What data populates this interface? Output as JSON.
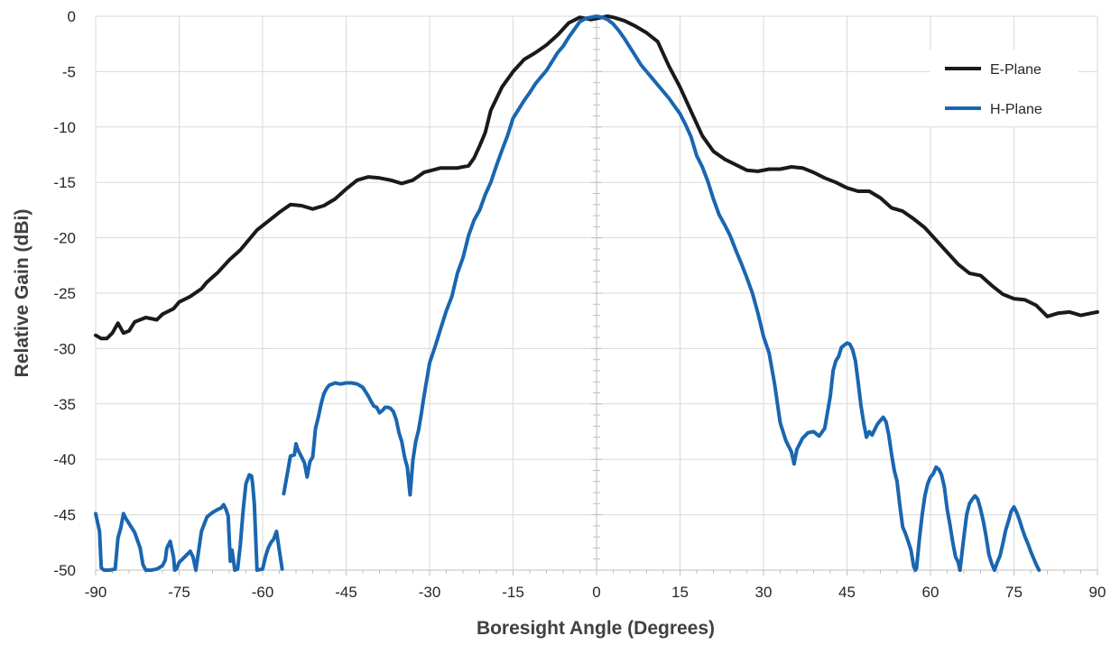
{
  "chart_data": {
    "type": "line",
    "title": "",
    "xlabel": "Boresight Angle (Degrees)",
    "ylabel": "Relative Gain (dBi)",
    "xlim": [
      -90,
      90
    ],
    "ylim": [
      -50,
      0
    ],
    "xticks": [
      -90,
      -75,
      -60,
      -45,
      -30,
      -15,
      0,
      15,
      30,
      45,
      60,
      75,
      90
    ],
    "yticks": [
      0,
      -5,
      -10,
      -15,
      -20,
      -25,
      -30,
      -35,
      -40,
      -45,
      -50
    ],
    "grid": true,
    "legend_position": "top-right",
    "series": [
      {
        "name": "E-Plane",
        "color": "#1a1a1a",
        "x": [
          -90,
          -89,
          -88,
          -87,
          -86,
          -85,
          -84,
          -83,
          -81,
          -79,
          -78,
          -76,
          -75,
          -73,
          -71,
          -70,
          -68,
          -66,
          -64,
          -63,
          -61,
          -59,
          -57,
          -55,
          -53,
          -51,
          -49,
          -47,
          -45,
          -43,
          -41,
          -39,
          -37,
          -35,
          -33,
          -31,
          -28,
          -25,
          -23,
          -22,
          -21,
          -20,
          -19,
          -17,
          -15,
          -13,
          -11,
          -9,
          -7,
          -5,
          -3,
          -1,
          0,
          1,
          2,
          3,
          5,
          7,
          9,
          11,
          13,
          15,
          17,
          19,
          21,
          23,
          25,
          27,
          29,
          31,
          33,
          35,
          37,
          39,
          41,
          43,
          45,
          47,
          49,
          51,
          53,
          55,
          57,
          59,
          61,
          63,
          65,
          67,
          69,
          71,
          73,
          75,
          77,
          79,
          81,
          83,
          85,
          87,
          88,
          89,
          90
        ],
        "values": [
          -28.8,
          -29.1,
          -29.1,
          -28.6,
          -27.7,
          -28.6,
          -28.4,
          -27.6,
          -27.2,
          -27.4,
          -26.9,
          -26.4,
          -25.8,
          -25.3,
          -24.6,
          -24.0,
          -23.1,
          -22.0,
          -21.1,
          -20.5,
          -19.3,
          -18.5,
          -17.7,
          -17.0,
          -17.1,
          -17.4,
          -17.1,
          -16.5,
          -15.6,
          -14.8,
          -14.5,
          -14.6,
          -14.8,
          -15.1,
          -14.8,
          -14.1,
          -13.7,
          -13.7,
          -13.5,
          -12.8,
          -11.7,
          -10.5,
          -8.5,
          -6.4,
          -5.0,
          -3.9,
          -3.3,
          -2.6,
          -1.7,
          -0.6,
          -0.1,
          -0.3,
          -0.2,
          -0.1,
          0.0,
          -0.1,
          -0.4,
          -0.9,
          -1.5,
          -2.3,
          -4.5,
          -6.4,
          -8.6,
          -10.8,
          -12.2,
          -12.9,
          -13.4,
          -13.9,
          -14.0,
          -13.8,
          -13.8,
          -13.6,
          -13.7,
          -14.1,
          -14.6,
          -15.0,
          -15.5,
          -15.8,
          -15.8,
          -16.4,
          -17.3,
          -17.6,
          -18.3,
          -19.1,
          -20.2,
          -21.3,
          -22.4,
          -23.2,
          -23.4,
          -24.3,
          -25.1,
          -25.5,
          -25.6,
          -26.1,
          -27.1,
          -26.8,
          -26.7,
          -27.0,
          -26.9,
          -26.8,
          -26.7
        ]
      },
      {
        "name": "H-Plane",
        "color": "#1a66b0",
        "segments": [
          {
            "x": [
              -90,
              -89.3,
              -89,
              -88.5,
              -87.5,
              -86.5,
              -86,
              -85.5,
              -85,
              -84.5,
              -83,
              -82,
              -81.5,
              -81,
              -80,
              -79,
              -78,
              -77.5,
              -77.2,
              -76.6,
              -76,
              -75.8,
              -75.5,
              -75,
              -74,
              -73,
              -72.5,
              -72,
              -71,
              -70,
              -69,
              -68,
              -67.5,
              -67,
              -66.6,
              -66.2,
              -65.8,
              -65.5,
              -65,
              -64.5,
              -64,
              -63.5,
              -63,
              -62.4,
              -62,
              -61.8,
              -61.5,
              -61,
              -60,
              -59.5,
              -59,
              -58.5,
              -58,
              -57.5,
              -56.5
            ],
            "values": [
              -44.9,
              -46.5,
              -49.8,
              -50.0,
              -50.0,
              -49.9,
              -47.1,
              -46.2,
              -44.9,
              -45.4,
              -46.6,
              -48.0,
              -49.5,
              -50.0,
              -50.0,
              -49.9,
              -49.6,
              -49.1,
              -48.0,
              -47.4,
              -48.8,
              -50.0,
              -49.9,
              -49.3,
              -48.8,
              -48.3,
              -48.8,
              -50.0,
              -46.5,
              -45.2,
              -44.8,
              -44.5,
              -44.4,
              -44.1,
              -44.5,
              -45.1,
              -49.2,
              -48.2,
              -50.0,
              -49.9,
              -47.7,
              -44.6,
              -42.2,
              -41.4,
              -41.5,
              -42.2,
              -44.0,
              -50.0,
              -49.9,
              -48.8,
              -48.0,
              -47.5,
              -47.2,
              -46.5,
              -49.9
            ]
          },
          {
            "x": [
              -56.2,
              -55.5,
              -55,
              -54.3,
              -54,
              -53.7,
              -53,
              -52.5,
              -52,
              -51.5,
              -51,
              -50.5,
              -50,
              -49.5,
              -49,
              -48.5,
              -48,
              -47.5,
              -47,
              -46,
              -45,
              -44,
              -43,
              -42,
              -41,
              -40.5,
              -40,
              -39.5,
              -39,
              -38.5,
              -38,
              -37.5,
              -37,
              -36.5,
              -36,
              -35.5,
              -35,
              -34.5,
              -34,
              -33.5,
              -33,
              -32.5,
              -32,
              -31.5,
              -31,
              -30,
              -29,
              -28,
              -27,
              -26,
              -25,
              -24,
              -23,
              -22,
              -21,
              -20,
              -19,
              -18,
              -17,
              -16,
              -15,
              -14,
              -13,
              -12,
              -11,
              -10,
              -9,
              -8,
              -7,
              -6,
              -5,
              -4,
              -3,
              -2,
              -1,
              0,
              1,
              2,
              3,
              4,
              5,
              6,
              7,
              8,
              9,
              10,
              11,
              12,
              13,
              14,
              15,
              16,
              17,
              18,
              19,
              20,
              21,
              22,
              23,
              24,
              25,
              26,
              27,
              28,
              29,
              30,
              31,
              32,
              33,
              34,
              35,
              35.5
            ],
            "values": [
              -43.1,
              -41.1,
              -39.7,
              -39.6,
              -38.6,
              -39.1,
              -39.8,
              -40.3,
              -41.6,
              -40.2,
              -39.8,
              -37.2,
              -36.2,
              -35.0,
              -34.1,
              -33.6,
              -33.3,
              -33.2,
              -33.1,
              -33.2,
              -33.1,
              -33.1,
              -33.2,
              -33.5,
              -34.3,
              -34.8,
              -35.2,
              -35.3,
              -35.8,
              -35.6,
              -35.3,
              -35.3,
              -35.4,
              -35.7,
              -36.4,
              -37.6,
              -38.4,
              -39.8,
              -40.7,
              -43.2,
              -40.1,
              -38.4,
              -37.4,
              -35.9,
              -34.3,
              -31.3,
              -29.8,
              -28.2,
              -26.6,
              -25.3,
              -23.2,
              -21.8,
              -19.8,
              -18.4,
              -17.5,
              -16.1,
              -15.0,
              -13.5,
              -12.1,
              -10.8,
              -9.2,
              -8.4,
              -7.6,
              -6.9,
              -6.1,
              -5.5,
              -4.9,
              -4.1,
              -3.3,
              -2.7,
              -1.9,
              -1.2,
              -0.5,
              -0.2,
              -0.1,
              0.0,
              -0.1,
              -0.3,
              -0.7,
              -1.3,
              -2.0,
              -2.8,
              -3.6,
              -4.4,
              -5.0,
              -5.6,
              -6.2,
              -6.8,
              -7.4,
              -8.1,
              -8.8,
              -9.8,
              -10.9,
              -12.6,
              -13.6,
              -14.9,
              -16.5,
              -17.9,
              -18.8,
              -19.8,
              -21.1,
              -22.3,
              -23.6,
              -25.0,
              -26.8,
              -28.9,
              -30.4,
              -33.2,
              -36.7,
              -38.3,
              -39.3,
              -40.4
            ]
          },
          {
            "x": [
              35.5,
              36,
              37,
              38,
              39,
              40,
              41,
              42,
              42.5,
              43,
              43.5,
              44,
              44.5,
              45,
              45.5,
              46,
              46.5,
              47,
              47.5,
              48,
              48.5,
              49,
              49.5,
              50,
              50.5,
              51,
              51.5,
              52,
              52.5,
              53,
              53.5,
              54,
              54.5,
              55,
              55.5,
              56,
              56.5,
              57,
              57.3,
              57.5
            ],
            "values": [
              -40.4,
              -39.1,
              -38.1,
              -37.6,
              -37.5,
              -37.9,
              -37.2,
              -34.3,
              -32.0,
              -31.1,
              -30.7,
              -29.9,
              -29.7,
              -29.5,
              -29.6,
              -30.1,
              -31.1,
              -33.0,
              -35.1,
              -36.7,
              -38.0,
              -37.5,
              -37.8,
              -37.3,
              -36.8,
              -36.5,
              -36.2,
              -36.6,
              -37.8,
              -39.5,
              -41.0,
              -42.0,
              -44.2,
              -46.1,
              -46.7,
              -47.4,
              -48.2,
              -49.7,
              -50.0,
              -49.8
            ]
          },
          {
            "x": [
              57.5,
              58,
              58.5,
              59,
              59.5,
              60,
              60.5,
              61,
              61.5,
              62,
              62.5,
              63,
              63.5,
              64,
              64.5,
              65,
              65.3
            ],
            "values": [
              -49.8,
              -47.2,
              -45.0,
              -43.3,
              -42.2,
              -41.6,
              -41.3,
              -40.7,
              -40.9,
              -41.4,
              -42.5,
              -44.5,
              -45.9,
              -47.5,
              -48.8,
              -49.3,
              -50.0
            ]
          },
          {
            "x": [
              65.3,
              66,
              66.5,
              67,
              67.5,
              68,
              68.5,
              69,
              69.5,
              70,
              70.5,
              71,
              71.5,
              72,
              72.5,
              73,
              73.5,
              74,
              74.5,
              75,
              75.5,
              76,
              76.5,
              77,
              77.5,
              78,
              78.5,
              79,
              79.5
            ],
            "values": [
              -50.0,
              -47.0,
              -45.0,
              -44.0,
              -43.6,
              -43.3,
              -43.6,
              -44.5,
              -45.6,
              -47.0,
              -48.6,
              -49.4,
              -50.0,
              -49.3,
              -48.7,
              -47.6,
              -46.4,
              -45.6,
              -44.7,
              -44.3,
              -44.8,
              -45.5,
              -46.3,
              -47.0,
              -47.6,
              -48.3,
              -48.9,
              -49.5,
              -50.0
            ]
          }
        ]
      }
    ]
  }
}
